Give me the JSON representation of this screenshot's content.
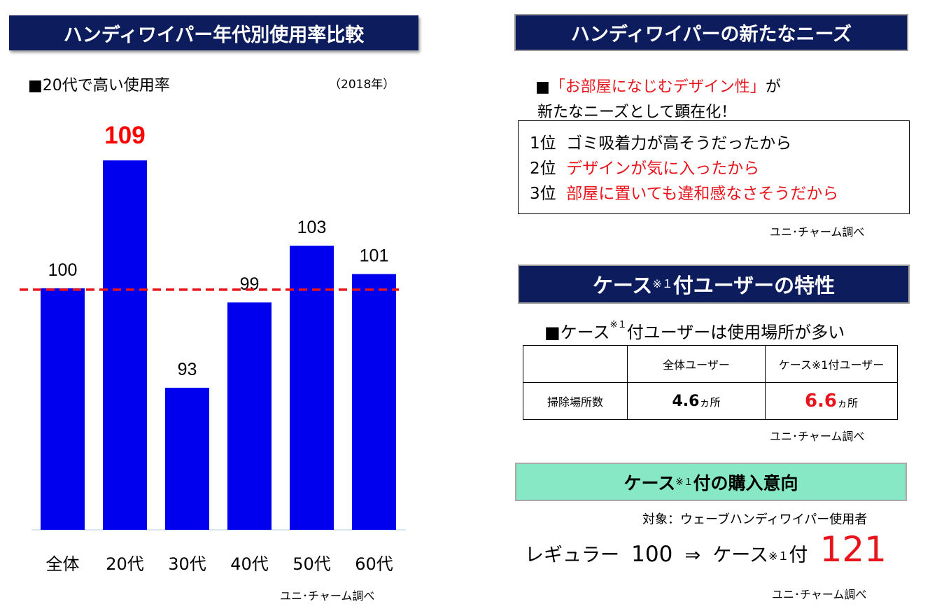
{
  "left": {
    "title": "ハンディワイパー年代別使用率比較",
    "subtitle": "■20代で高い使用率",
    "year": "（2018年）",
    "source": "ユニ･チャーム調べ"
  },
  "chart_data": {
    "type": "bar",
    "title": "ハンディワイパー年代別使用率比較",
    "categories": [
      "全体",
      "20代",
      "30代",
      "40代",
      "50代",
      "60代"
    ],
    "values": [
      100,
      109,
      93,
      99,
      103,
      101
    ],
    "value_labels": [
      "100",
      "109",
      "93",
      "99",
      "103",
      "101"
    ],
    "highlight_index": 1,
    "reference_line": 100,
    "ylim": [
      83,
      112
    ],
    "bar_color": "#0000ee",
    "highlight_label_color": "#ff0000",
    "reference_line_color": "#e8141c",
    "grid": false
  },
  "needs": {
    "title": "ハンディワイパーの新たなニーズ",
    "lead1_prefix": "■",
    "lead1_red": "「お部屋になじむデザイン性」",
    "lead1_suffix": "が",
    "lead2": "新たなニーズとして顕在化！",
    "ranks": [
      {
        "rank": "1位",
        "text": "ゴミ吸着力が高そうだったから",
        "red": false
      },
      {
        "rank": "2位",
        "text": "デザインが気に入ったから",
        "red": true
      },
      {
        "rank": "3位",
        "text": "部屋に置いても違和感なさそうだから",
        "red": true
      }
    ],
    "source": "ユニ･チャーム調べ"
  },
  "traits": {
    "title_a": "ケース",
    "title_note": "※１",
    "title_b": "付ユーザーの特性",
    "lead_a": "■ケース",
    "lead_note": "※１",
    "lead_b": "付ユーザーは使用場所が多い",
    "col1": "全体ユーザー",
    "col2": "ケース※1付ユーザー",
    "row_label": "掃除場所数",
    "val1": "4.6",
    "val2": "6.6",
    "unit": "ヵ所",
    "source": "ユニ･チャーム調べ"
  },
  "intent": {
    "title_a": "ケース",
    "title_note": "※１",
    "title_b": "付の購入意向",
    "target": "対象：ウェーブハンディワイパー使用者",
    "regular_label": "レギュラー",
    "regular_value": "100",
    "arrow": "⇒",
    "case_a": "ケース",
    "case_note": "※１",
    "case_b": "付",
    "case_value": "121",
    "source": "ユニ･チャーム調べ"
  }
}
